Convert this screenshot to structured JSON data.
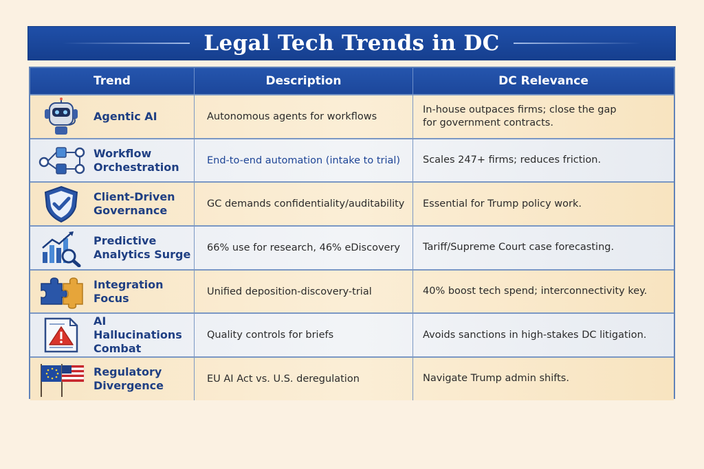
{
  "title": "Legal Tech Trends in DC",
  "headers": {
    "trend": "Trend",
    "description": "Description",
    "relevance": "DC Relevance"
  },
  "rows": [
    {
      "trend": "Agentic AI",
      "icon": "robot-icon",
      "description": "Autonomous agents for workflows",
      "relevance": "In-house outpaces firms; close the gap\nfor government contracts."
    },
    {
      "trend": "Workflow\nOrchestration",
      "icon": "workflow-diagram-icon",
      "description": "End-to-end automation (intake to trial)",
      "relevance": "Scales 247+ firms; reduces friction."
    },
    {
      "trend": "Client-Driven\nGovernance",
      "icon": "shield-check-icon",
      "description": "GC demands confidentiality/auditability",
      "relevance": "Essential for Trump policy work."
    },
    {
      "trend": "Predictive\nAnalytics Surge",
      "icon": "chart-magnifier-icon",
      "description": "66% use for research, 46% eDiscovery",
      "relevance": "Tariff/Supreme Court case forecasting."
    },
    {
      "trend": "Integration\nFocus",
      "icon": "puzzle-icon",
      "description": "Unified deposition-discovery-trial",
      "relevance": "40% boost tech spend; interconnectivity key."
    },
    {
      "trend": "AI Hallucinations\nCombat",
      "icon": "warning-document-icon",
      "description": "Quality controls for briefs",
      "relevance": "Avoids sanctions in high-stakes DC litigation."
    },
    {
      "trend": "Regulatory\nDivergence",
      "icon": "eu-us-flags-icon",
      "description": "EU AI Act vs. U.S. deregulation",
      "relevance": "Navigate Trump admin shifts."
    }
  ]
}
